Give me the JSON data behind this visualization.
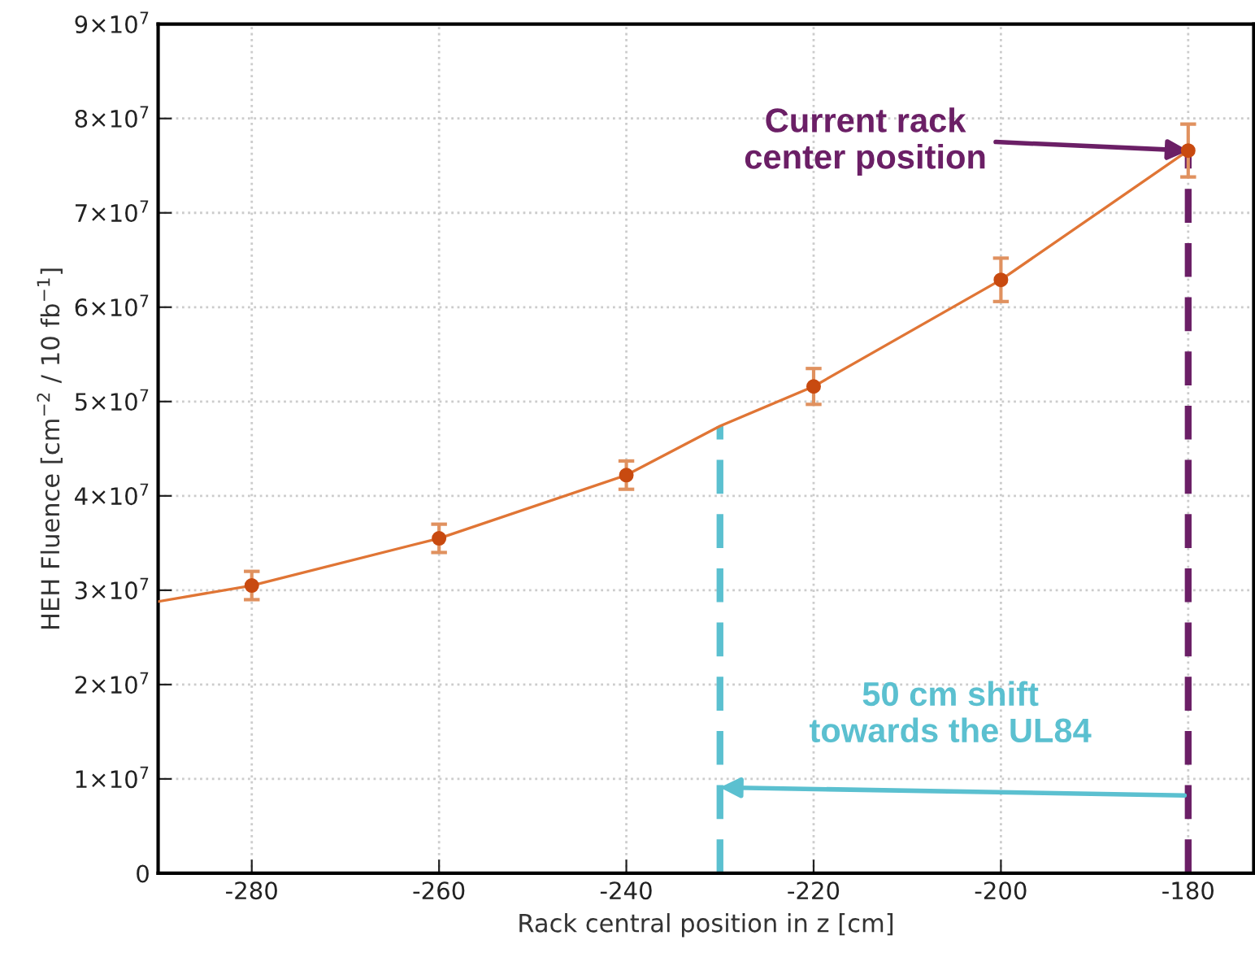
{
  "chart_data": {
    "type": "scatter",
    "xlabel": "Rack central position in z [cm]",
    "ylabel": "HEH Fluence [cm$^{−2}$ / 10 fb$^{−1}$]",
    "xlim": [
      -290,
      -173
    ],
    "xticks": [
      -280,
      -260,
      -240,
      -220,
      -200,
      -180
    ],
    "ylim": [
      0,
      90000000
    ],
    "yticks": [
      0,
      {
        "value": 10000000,
        "label": "1×10$^{7}$"
      },
      {
        "value": 20000000,
        "label": "2×10$^{7}$"
      },
      {
        "value": 30000000,
        "label": "3×10$^{7}$"
      },
      {
        "value": 40000000,
        "label": "4×10$^{7}$"
      },
      {
        "value": 50000000,
        "label": "5×10$^{7}$"
      },
      {
        "value": 60000000,
        "label": "6×10$^{7}$"
      },
      {
        "value": 70000000,
        "label": "7×10$^{7}$"
      },
      {
        "value": 80000000,
        "label": "8×10$^{7}$"
      },
      {
        "value": 90000000,
        "label": "9×10$^{7}$"
      }
    ],
    "grid": true,
    "series": [
      {
        "type": "line",
        "color": "#e07535",
        "marker": "none",
        "line_style": "solid",
        "x": [
          -290,
          -280,
          -260,
          -240,
          -230,
          -220,
          -200,
          -180
        ],
        "values": [
          28800000,
          30500000,
          35500000,
          42200000,
          47400000,
          51600000,
          62900000,
          76600000
        ]
      },
      {
        "color": "#c84a10",
        "marker": "circle",
        "x": [
          -280,
          -260,
          -240,
          -220,
          -200,
          -180
        ],
        "values": [
          30500000,
          35500000,
          42200000,
          51600000,
          62900000,
          76600000
        ],
        "errors": [
          1500000,
          1500000,
          1500000,
          1900000,
          2300000,
          2800000
        ]
      }
    ],
    "ref_lines": [
      {
        "axis": "x",
        "value": -230,
        "color": "#5bc0d0",
        "line_style": "dashed"
      },
      {
        "axis": "x",
        "value": -180,
        "color": "#6b1f66",
        "line_style": "dashed"
      }
    ],
    "annotations": [
      {
        "text": "Current rack\ncenter position",
        "x": -180,
        "y": 76600000
      },
      {
        "text": "50 cm shift\ntowards the UL84",
        "x": -230,
        "y": 9100000
      }
    ]
  }
}
